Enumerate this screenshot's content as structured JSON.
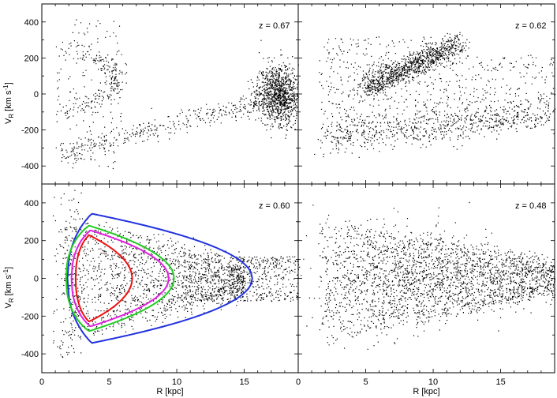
{
  "chart_data": {
    "type": "scatter",
    "xlabel": "R [kpc]",
    "ylabel_main": "V",
    "ylabel_sub": "R",
    "ylabel_units": "[km s",
    "ylabel_sup": "-1",
    "ylabel_close": "]",
    "xlim": [
      0,
      19
    ],
    "ylim": [
      -500,
      500
    ],
    "xticks": [
      "0",
      "5",
      "10",
      "15"
    ],
    "yticks": [
      "400",
      "200",
      "0",
      "-200",
      "-400"
    ],
    "panels": [
      {
        "label": "z = 0.67",
        "seed": 11,
        "clouds": [
          {
            "n": 1100,
            "kind": "blob",
            "cx": 17.5,
            "cy": 0,
            "rx": 0.8,
            "ry": 80
          },
          {
            "n": 350,
            "kind": "line",
            "x0": 1.5,
            "y0": -330,
            "x1": 16.5,
            "y1": -30,
            "jx": 0.3,
            "jy": 30
          },
          {
            "n": 230,
            "kind": "arc",
            "cx": 5.5,
            "cy": 80,
            "spanx": 4,
            "spany": 180,
            "jx": 0.35,
            "jy": 30
          },
          {
            "n": 140,
            "kind": "box",
            "x0": 1,
            "x1": 6,
            "y0": -420,
            "y1": 420
          }
        ]
      },
      {
        "label": "z = 0.62",
        "seed": 23,
        "clouds": [
          {
            "n": 1000,
            "kind": "line",
            "x0": 5,
            "y0": 40,
            "x1": 12,
            "y1": 280,
            "jx": 0.4,
            "jy": 35
          },
          {
            "n": 650,
            "kind": "line",
            "x0": 2,
            "y0": -240,
            "x1": 19,
            "y1": -100,
            "jx": 0.5,
            "jy": 50
          },
          {
            "n": 450,
            "kind": "box",
            "x0": 1.5,
            "x1": 11,
            "y0": -250,
            "y1": 320
          },
          {
            "n": 250,
            "kind": "box",
            "x0": 11,
            "x1": 19,
            "y0": -200,
            "y1": 220
          }
        ]
      },
      {
        "label": "z = 0.60",
        "seed": 37,
        "clouds": [
          {
            "n": 1700,
            "kind": "tri",
            "x0": 1.5,
            "x1": 15,
            "ytop": 330,
            "ybot": -330
          },
          {
            "n": 350,
            "kind": "box",
            "x0": 14,
            "x1": 19,
            "y0": -120,
            "y1": 120
          },
          {
            "n": 120,
            "kind": "box",
            "x0": 0.8,
            "x1": 3,
            "y0": -420,
            "y1": 470
          }
        ],
        "orbits": [
          {
            "color": "#2233dd",
            "rmin": 1.9,
            "rmax": 15.6,
            "vmax": 350,
            "rpeak": 3.7
          },
          {
            "color": "#22cc22",
            "rmin": 1.8,
            "rmax": 9.8,
            "vmax": 300,
            "rpeak": 3.5
          },
          {
            "color": "#dd22dd",
            "rmin": 2.2,
            "rmax": 9.4,
            "vmax": 270,
            "rpeak": 3.6
          },
          {
            "color": "#ee1111",
            "rmin": 2.5,
            "rmax": 6.7,
            "vmax": 250,
            "rpeak": 3.5
          }
        ]
      },
      {
        "label": "z = 0.48",
        "seed": 53,
        "clouds": [
          {
            "n": 2100,
            "kind": "tri",
            "x0": 1.5,
            "x1": 19,
            "ytop": 330,
            "ybot": -330
          },
          {
            "n": 500,
            "kind": "blob",
            "cx": 7.5,
            "cy": 0,
            "rx": 3.5,
            "ry": 150
          }
        ]
      }
    ]
  }
}
